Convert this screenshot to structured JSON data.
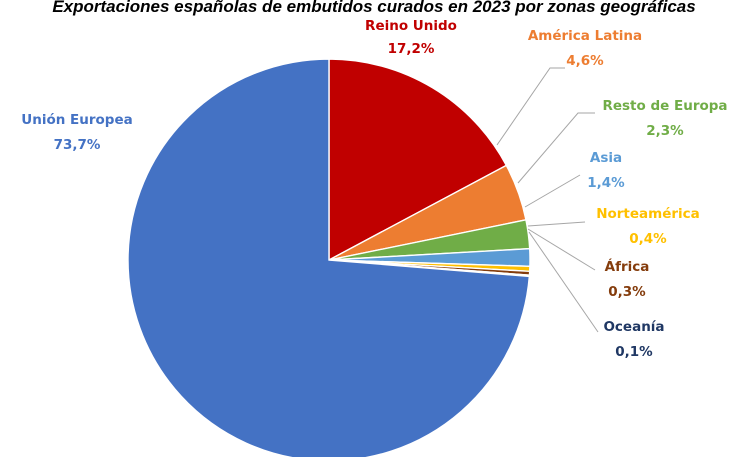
{
  "chart_data": {
    "type": "pie",
    "title": "Exportaciones españolas de embutidos curados en 2023 por zonas geográficas",
    "start_angle_deg": 0,
    "slices": [
      {
        "label": "Reino Unido",
        "value": 17.2,
        "value_text": "17,2%",
        "color": "#c00000"
      },
      {
        "label": "América Latina",
        "value": 4.6,
        "value_text": "4,6%",
        "color": "#ed7d31"
      },
      {
        "label": "Resto de Europa",
        "value": 2.3,
        "value_text": "2,3%",
        "color": "#70ad47"
      },
      {
        "label": "Asia",
        "value": 1.4,
        "value_text": "1,4%",
        "color": "#5b9bd5"
      },
      {
        "label": "Norteamérica",
        "value": 0.4,
        "value_text": "0,4%",
        "color": "#ffc000"
      },
      {
        "label": "África",
        "value": 0.3,
        "value_text": "0,3%",
        "color": "#843c0c"
      },
      {
        "label": "Oceanía",
        "value": 0.1,
        "value_text": "0,1%",
        "color": "#203864"
      },
      {
        "label": "Unión Europea",
        "value": 73.7,
        "value_text": "73,7%",
        "color": "#4472c4"
      }
    ],
    "legend": "none"
  }
}
